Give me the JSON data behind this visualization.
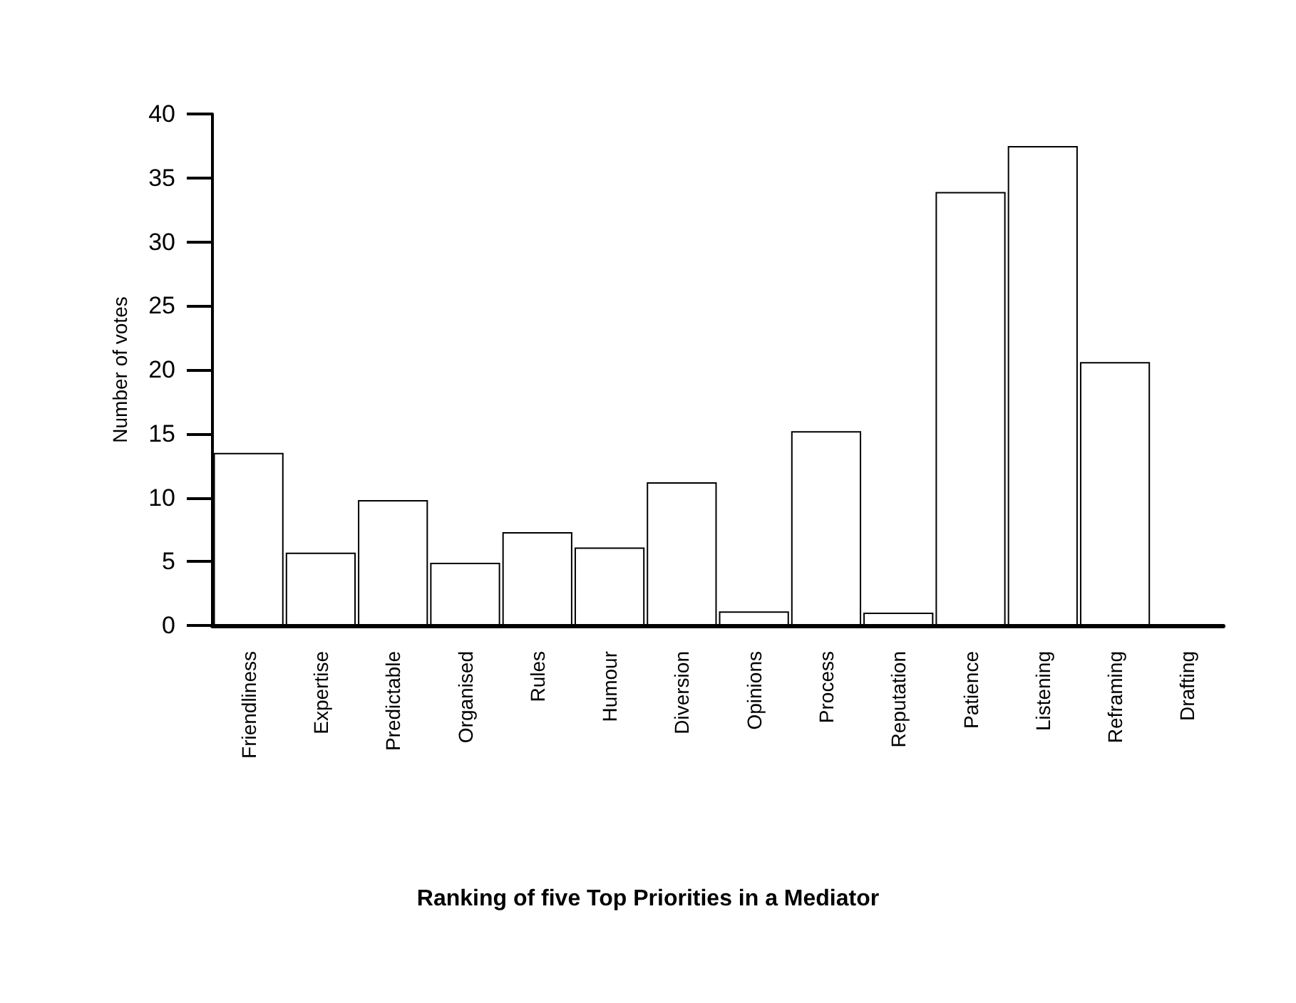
{
  "chart_data": {
    "type": "bar",
    "title": "Ranking of five Top Priorities in a Mediator",
    "ylabel": "Number of votes",
    "categories": [
      "Friendliness",
      "Expertise",
      "Predictable",
      "Organised",
      "Rules",
      "Humour",
      "Diversion",
      "Opinions",
      "Process",
      "Reputation",
      "Patience",
      "Listening",
      "Reframing",
      "Drafting"
    ],
    "values": [
      13.5,
      5.7,
      9.8,
      4.9,
      7.3,
      6.1,
      11.2,
      1.1,
      15.2,
      1.0,
      33.9,
      37.5,
      20.6,
      0
    ],
    "color": "#ffffff",
    "ylim": [
      0,
      40
    ],
    "yticks": [
      0,
      5,
      10,
      15,
      20,
      25,
      30,
      35,
      40
    ],
    "grid": false
  }
}
